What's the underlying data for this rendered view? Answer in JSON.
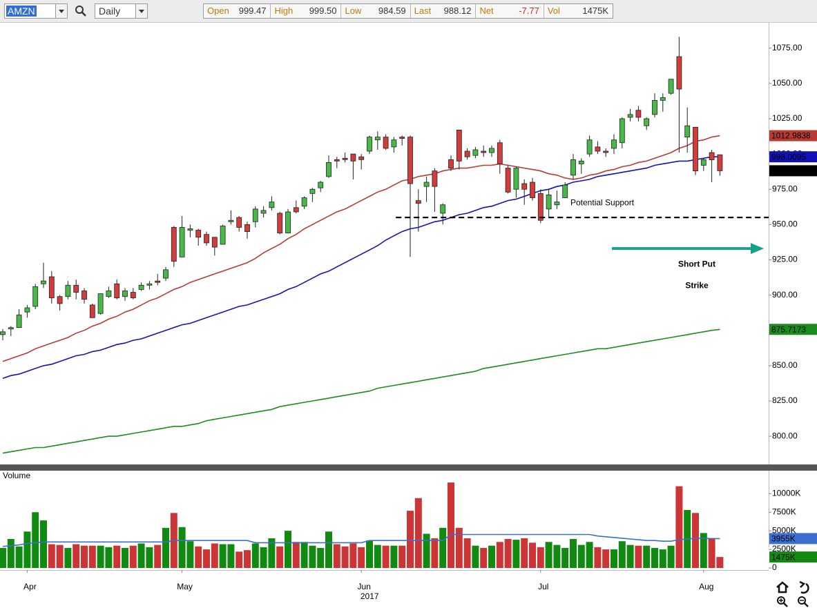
{
  "toolbar": {
    "symbol": "AMZN",
    "interval": "Daily",
    "quote": [
      {
        "label": "Open",
        "value": "999.47"
      },
      {
        "label": "High",
        "value": "999.50"
      },
      {
        "label": "Low",
        "value": "984.59"
      },
      {
        "label": "Last",
        "value": "988.12"
      },
      {
        "label": "Net",
        "value": "-7.77"
      },
      {
        "label": "Vol",
        "value": "1475K"
      }
    ]
  },
  "chart_data": [
    {
      "type": "candlestick",
      "categories": [
        null,
        null,
        null,
        "Apr",
        null,
        null,
        null,
        null,
        null,
        null,
        null,
        null,
        null,
        null,
        null,
        null,
        null,
        null,
        null,
        null,
        null,
        null,
        "May",
        null,
        null,
        null,
        null,
        null,
        null,
        null,
        null,
        null,
        null,
        null,
        null,
        null,
        null,
        null,
        null,
        null,
        null,
        null,
        null,
        null,
        "Jun",
        null,
        null,
        null,
        null,
        null,
        null,
        null,
        null,
        null,
        null,
        null,
        null,
        null,
        null,
        null,
        null,
        null,
        null,
        null,
        null,
        null,
        "Jul",
        null,
        null,
        null,
        null,
        null,
        null,
        null,
        null,
        null,
        null,
        null,
        null,
        null,
        null,
        null,
        null,
        null,
        null,
        null,
        "Aug",
        null,
        null
      ],
      "x_label": "2017",
      "open": [
        872,
        876,
        877,
        888,
        892,
        908,
        913,
        899,
        899,
        907,
        903,
        893,
        887,
        899,
        908,
        899,
        902,
        904,
        907,
        910,
        912,
        948,
        927,
        946,
        946,
        943,
        941,
        936,
        952,
        955,
        950,
        952,
        958,
        962,
        958,
        944,
        962,
        963,
        972,
        976,
        984,
        996,
        997,
        1000,
        998,
        1002,
        1010,
        1012,
        1005,
        1012,
        1012,
        967,
        977,
        988,
        958,
        996,
        1017,
        1002,
        999,
        1002,
        1001,
        1008,
        990,
        975,
        979,
        980,
        972,
        961,
        964,
        969,
        985,
        993,
        1000,
        1005,
        1002,
        1004,
        1008,
        1026,
        1031,
        1020,
        1028,
        1038,
        1043,
        1069,
        1012,
        1019,
        992,
        1001,
        999.47
      ],
      "high": [
        876,
        878,
        890,
        893,
        908,
        923,
        917,
        900,
        910,
        911,
        905,
        894,
        901,
        906,
        911,
        905,
        905,
        909,
        910,
        915,
        920,
        949,
        956,
        950,
        947,
        945,
        941,
        950,
        960,
        956,
        952,
        963,
        963,
        970,
        959,
        961,
        967,
        970,
        976,
        981,
        999,
        998,
        1001,
        1000,
        1000,
        1013,
        1016,
        1014,
        1012,
        1013,
        1013,
        975,
        984,
        990,
        965,
        999,
        1017,
        1004,
        1005,
        1006,
        1006,
        1010,
        992,
        991,
        982,
        983,
        975,
        975,
        974,
        980,
        1000,
        997,
        1013,
        1009,
        1004,
        1014,
        1026,
        1032,
        1034,
        1026,
        1043,
        1043,
        1053,
        1083,
        1033,
        1019,
        997,
        1003,
        999.5
      ],
      "low": [
        868,
        871,
        877,
        884,
        890,
        905,
        894,
        889,
        897,
        897,
        894,
        884,
        886,
        898,
        897,
        896,
        897,
        903,
        904,
        907,
        910,
        920,
        927,
        941,
        935,
        935,
        928,
        936,
        950,
        945,
        940,
        948,
        955,
        960,
        943,
        944,
        958,
        961,
        966,
        973,
        983,
        990,
        994,
        982,
        989,
        1000,
        1003,
        1003,
        1001,
        1006,
        927,
        945,
        966,
        959,
        950,
        988,
        989,
        996,
        997,
        998,
        998,
        986,
        972,
        969,
        964,
        967,
        951,
        955,
        961,
        969,
        982,
        986,
        998,
        1000,
        998,
        1000,
        1004,
        1023,
        1023,
        1017,
        1026,
        1030,
        1042,
        1001,
        1001,
        985,
        988,
        980,
        984.59
      ],
      "close": [
        874,
        877,
        886,
        891,
        906,
        910,
        898,
        894,
        907,
        902,
        897,
        884,
        901,
        903,
        898,
        903,
        898,
        907,
        908,
        909,
        918,
        924,
        948,
        947,
        941,
        937,
        934,
        949,
        953,
        948,
        945,
        961,
        960,
        966,
        944,
        959,
        959,
        969,
        975,
        980,
        994,
        995,
        996,
        995,
        996,
        1012,
        1012,
        1004,
        1010,
        1011,
        979,
        965,
        980,
        977,
        964,
        990,
        995,
        998,
        1003,
        1001,
        1004,
        993,
        973,
        990,
        975,
        969,
        953,
        971,
        966,
        978,
        996,
        995,
        1010,
        1002,
        1001,
        1010,
        1025,
        1028,
        1026,
        1025,
        1038,
        1040,
        1053,
        1046,
        1020,
        988,
        996,
        995.89,
        988.12
      ],
      "up_color": "#46b946",
      "down_color": "#d13c3c",
      "last_color": "#000000",
      "series": [
        {
          "color": "#b83a32",
          "values": [
            853,
            855,
            857,
            859,
            862,
            864,
            866,
            868,
            870,
            873,
            875,
            878,
            880,
            883,
            885,
            888,
            890,
            893,
            896,
            898,
            901,
            904,
            906,
            909,
            911,
            913,
            915,
            917,
            919,
            921,
            923,
            926,
            930,
            933,
            936,
            940,
            943,
            947,
            950,
            953,
            956,
            959,
            961,
            964,
            967,
            970,
            973,
            975,
            978,
            981,
            982,
            984,
            985,
            986,
            988,
            989,
            990,
            990,
            991,
            992,
            992,
            993,
            992,
            991,
            990,
            989,
            988,
            986,
            985,
            983,
            982,
            983,
            985,
            986,
            988,
            989,
            991,
            992,
            994,
            995,
            997,
            999,
            1001,
            1004,
            1006,
            1009,
            1010,
            1012,
            1012.9838
          ]
        },
        {
          "color": "#1212b8",
          "values": [
            841,
            843,
            844,
            846,
            848,
            850,
            851,
            853,
            855,
            857,
            858,
            860,
            861,
            863,
            865,
            866,
            868,
            869,
            871,
            873,
            875,
            877,
            879,
            880,
            882,
            884,
            886,
            888,
            890,
            892,
            893,
            895,
            897,
            899,
            901,
            904,
            906,
            909,
            912,
            915,
            917,
            920,
            923,
            926,
            929,
            932,
            935,
            939,
            942,
            945,
            947,
            948,
            950,
            952,
            953,
            955,
            957,
            958,
            960,
            962,
            963,
            965,
            967,
            968,
            970,
            972,
            974,
            975,
            977,
            978,
            980,
            981,
            982,
            984,
            985,
            986,
            987,
            988,
            989,
            990,
            992,
            993,
            994,
            995,
            995,
            996,
            997,
            998,
            998.0095
          ]
        },
        {
          "color": "#1c8c1c",
          "values": [
            788,
            789,
            790,
            791,
            792,
            792,
            793,
            794,
            795,
            796,
            797,
            798,
            799,
            800,
            800,
            801,
            802,
            803,
            804,
            805,
            806,
            807,
            807,
            808,
            809,
            811,
            812,
            813,
            814,
            815,
            816,
            817,
            818,
            819,
            821,
            822,
            823,
            824,
            825,
            826,
            827,
            828,
            829,
            830,
            831,
            832,
            834,
            835,
            836,
            837,
            838,
            839,
            840,
            841,
            842,
            843,
            844,
            845,
            846,
            848,
            849,
            850,
            851,
            852,
            853,
            854,
            855,
            856,
            857,
            858,
            859,
            860,
            861,
            862,
            862,
            863,
            864,
            865,
            866,
            867,
            868,
            869,
            870,
            871,
            872,
            873,
            874,
            875,
            875.7173
          ]
        }
      ],
      "ylim": [
        780,
        1092
      ],
      "yticks": [
        {
          "value": 800,
          "label": "800.00"
        },
        {
          "value": 825,
          "label": "825.00"
        },
        {
          "value": 850,
          "label": "850.00"
        },
        {
          "value": 875,
          "label": "875.00"
        },
        {
          "value": 900,
          "label": "900.00"
        },
        {
          "value": 925,
          "label": "925.00"
        },
        {
          "value": 950,
          "label": "950.00"
        },
        {
          "value": 975,
          "label": "975.00"
        },
        {
          "value": 1000,
          "label": "1000.00"
        },
        {
          "value": 1025,
          "label": "1025.00"
        },
        {
          "value": 1050,
          "label": "1050.00"
        },
        {
          "value": 1075,
          "label": "1075.00"
        }
      ],
      "annotations": [
        {
          "text": "Potential Support",
          "value": 955,
          "color": "#000000"
        },
        {
          "lines": [
            "Short Put",
            "Strike"
          ],
          "value": 933,
          "color": "#17a08a"
        }
      ]
    },
    {
      "type": "bar",
      "title": "Volume",
      "values": [
        2700,
        3900,
        2900,
        4900,
        7500,
        6400,
        3200,
        3100,
        2700,
        3200,
        3000,
        3000,
        3000,
        2800,
        3000,
        2700,
        3000,
        3300,
        2800,
        3100,
        5400,
        7400,
        5500,
        3600,
        2900,
        2500,
        3300,
        3200,
        3200,
        2200,
        2400,
        3300,
        2800,
        4000,
        2900,
        5000,
        3500,
        3500,
        3000,
        2700,
        4900,
        3200,
        2900,
        3300,
        2800,
        3700,
        3100,
        3000,
        3000,
        3000,
        7700,
        9400,
        4600,
        4000,
        5400,
        11500,
        5400,
        4000,
        3000,
        2700,
        3000,
        3500,
        3900,
        3800,
        4000,
        3400,
        2800,
        3500,
        3100,
        2700,
        3900,
        3100,
        3500,
        2800,
        2500,
        2500,
        3600,
        3100,
        3000,
        3000,
        2700,
        2500,
        3000,
        11000,
        7800,
        7400,
        4700,
        4000,
        1475
      ],
      "badge": "1475K",
      "up_color": "#118a11",
      "down_color": "#cc3535",
      "average": {
        "color": "#3a6fd0",
        "badge": "3955K",
        "values": [
          2900,
          3000,
          3100,
          3300,
          3400,
          3500,
          3500,
          3500,
          3500,
          3500,
          3500,
          3500,
          3500,
          3500,
          3500,
          3500,
          3500,
          3500,
          3500,
          3500,
          3500,
          3700,
          3700,
          3700,
          3700,
          3700,
          3700,
          3700,
          3700,
          3700,
          3700,
          3400,
          3400,
          3400,
          3400,
          3400,
          3400,
          3400,
          3400,
          3400,
          3400,
          3400,
          3400,
          3400,
          3400,
          3700,
          3700,
          3700,
          3700,
          3700,
          3700,
          3700,
          3700,
          3700,
          3700,
          4500,
          4500,
          4500,
          4500,
          4500,
          4500,
          4500,
          4500,
          4500,
          4500,
          4500,
          4500,
          4500,
          4500,
          4500,
          4500,
          4500,
          4500,
          4300,
          4200,
          4100,
          4000,
          3900,
          3800,
          3700,
          3700,
          3600,
          3600,
          3800,
          3900,
          4000,
          4000,
          3960,
          3955
        ]
      },
      "ylim": [
        0,
        13000
      ],
      "yticks": [
        0,
        {
          "value": 2500,
          "label": "2500K"
        },
        {
          "value": 5000,
          "label": "5000K"
        },
        {
          "value": 7500,
          "label": "7500K"
        },
        {
          "value": 10000,
          "label": "10000K"
        }
      ]
    }
  ]
}
